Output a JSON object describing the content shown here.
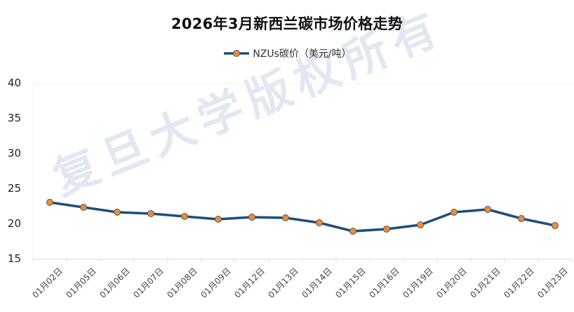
{
  "chart_data": {
    "type": "line",
    "title": "2026年3月新西兰碳市场价格走势",
    "xlabel": "",
    "ylabel": "",
    "ylim": [
      15,
      40
    ],
    "yticks": [
      15,
      20,
      25,
      30,
      35,
      40
    ],
    "grid": false,
    "legend_position": "top",
    "categories": [
      "01月02日",
      "01月05日",
      "01月06日",
      "01月07日",
      "01月08日",
      "01月09日",
      "01月12日",
      "01月13日",
      "01月14日",
      "01月15日",
      "01月16日",
      "01月19日",
      "01月20日",
      "01月21日",
      "01月22日",
      "01月23日"
    ],
    "series": [
      {
        "name": "NZUs碳价（美元/吨）",
        "values": [
          23.1,
          22.4,
          21.7,
          21.5,
          21.1,
          20.7,
          21.0,
          20.9,
          20.2,
          19.0,
          19.3,
          19.9,
          21.7,
          22.1,
          20.8,
          19.8
        ],
        "line_color": "#1f4e79",
        "marker_color": "#ed8b3c"
      }
    ]
  },
  "watermark": "复旦大学版权所有",
  "colors": {
    "line": "#1f4e79",
    "marker": "#ed8b3c",
    "axis": "#d9d9d9"
  }
}
